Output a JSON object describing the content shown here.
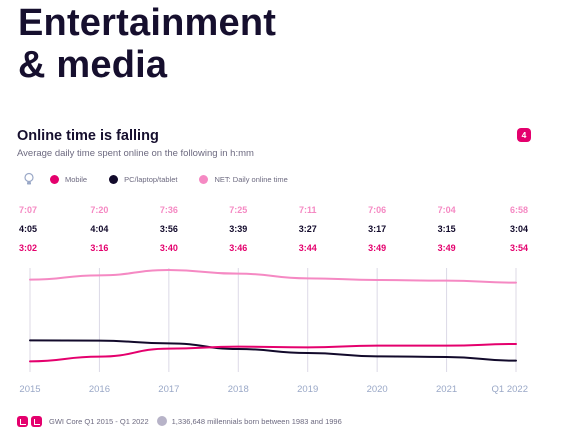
{
  "page": {
    "title": "Entertainment\n& media",
    "page_number": "4"
  },
  "chart_data": {
    "type": "line",
    "title": "Online time is falling",
    "subtitle": "Average daily time spent online on the following in h:mm",
    "categories": [
      "2015",
      "2016",
      "2017",
      "2018",
      "2019",
      "2020",
      "2021",
      "Q1 2022"
    ],
    "series": [
      {
        "name": "NET: Daily online time",
        "color": "#f589c3",
        "labels": [
          "7:07",
          "7:20",
          "7:36",
          "7:25",
          "7:11",
          "7:06",
          "7:04",
          "6:58"
        ],
        "values_minutes": [
          427,
          440,
          456,
          445,
          431,
          426,
          424,
          418
        ]
      },
      {
        "name": "PC/laptop/tablet",
        "color": "#120a2b",
        "labels": [
          "4:05",
          "4:04",
          "3:56",
          "3:39",
          "3:27",
          "3:17",
          "3:15",
          "3:04"
        ],
        "values_minutes": [
          245,
          244,
          236,
          219,
          207,
          197,
          195,
          184
        ]
      },
      {
        "name": "Mobile",
        "color": "#e4006d",
        "labels": [
          "3:02",
          "3:16",
          "3:40",
          "3:46",
          "3:44",
          "3:49",
          "3:49",
          "3:54"
        ],
        "values_minutes": [
          182,
          196,
          220,
          226,
          224,
          229,
          229,
          234
        ]
      }
    ],
    "legend_order": [
      "Mobile",
      "PC/laptop/tablet",
      "NET: Daily online time"
    ],
    "grid": "vertical lines at each period",
    "legend_position": "top-left"
  },
  "footer": {
    "source": "GWI Core Q1 2015 - Q1 2022",
    "sample": "1,336,648 millennials born between 1983 and 1996"
  },
  "colors": {
    "accent": "#e4006d",
    "net": "#f589c3",
    "pc": "#120a2b",
    "grid": "#dcd9e6",
    "axis_text": "#9aa8c7"
  },
  "icons": {
    "legend": "lightbulb-icon",
    "footer_chart": "bar-chart-icon",
    "footer_sample": "people-icon"
  }
}
